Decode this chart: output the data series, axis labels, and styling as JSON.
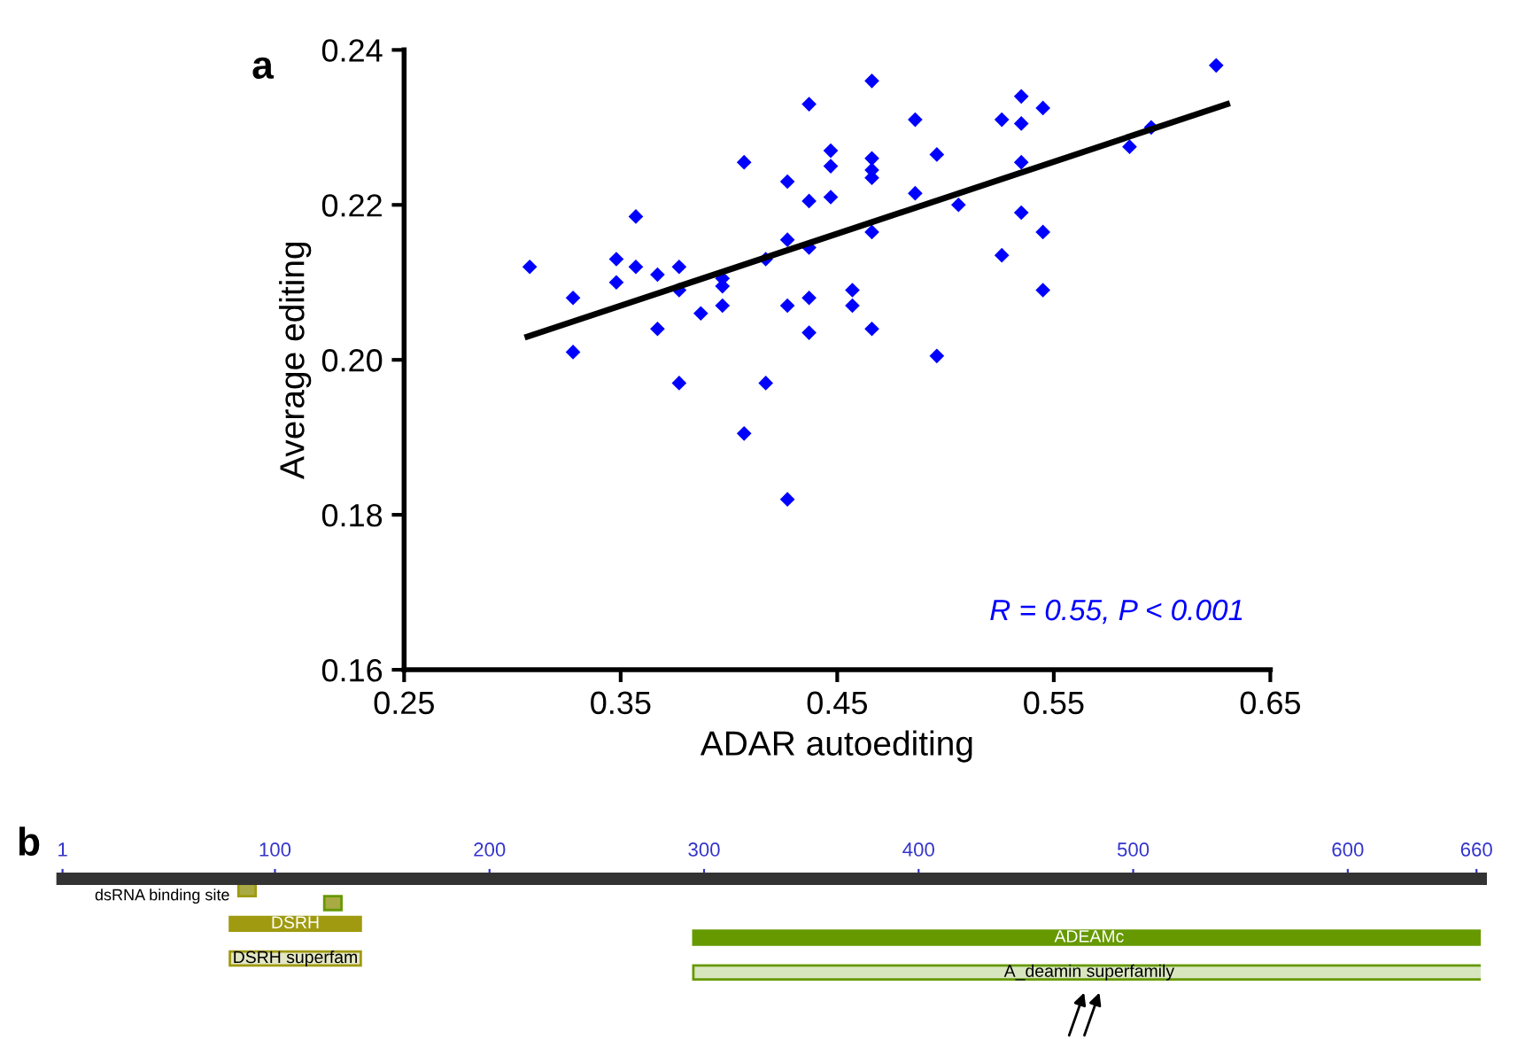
{
  "chart_data": [
    {
      "type": "scatter",
      "title": "a",
      "xlabel": "ADAR autoediting",
      "ylabel": "Average editing",
      "xlim": [
        0.25,
        0.65
      ],
      "xticks": [
        {
          "value": 0.25,
          "label": "0.25"
        },
        {
          "value": 0.35,
          "label": "0.35"
        },
        {
          "value": 0.45,
          "label": "0.45"
        },
        {
          "value": 0.55,
          "label": "0.55"
        },
        {
          "value": 0.65,
          "label": "0.65"
        }
      ],
      "ylim": [
        0.16,
        0.24
      ],
      "yticks": [
        {
          "value": 0.16,
          "label": "0.16"
        },
        {
          "value": 0.18,
          "label": "0.18"
        },
        {
          "value": 0.2,
          "label": "0.20"
        },
        {
          "value": 0.22,
          "label": "0.22"
        },
        {
          "value": 0.24,
          "label": "0.24"
        }
      ],
      "grid": false,
      "legend": false,
      "series": [
        {
          "type": "scatter",
          "color": "#0000ff",
          "marker": "diamond",
          "x": [
            0.308,
            0.328,
            0.328,
            0.348,
            0.348,
            0.357,
            0.357,
            0.367,
            0.367,
            0.377,
            0.377,
            0.377,
            0.387,
            0.397,
            0.397,
            0.397,
            0.407,
            0.407,
            0.417,
            0.417,
            0.427,
            0.427,
            0.427,
            0.427,
            0.437,
            0.437,
            0.437,
            0.437,
            0.437,
            0.447,
            0.447,
            0.447,
            0.457,
            0.457,
            0.466,
            0.466,
            0.466,
            0.466,
            0.466,
            0.466,
            0.486,
            0.486,
            0.496,
            0.496,
            0.506,
            0.526,
            0.526,
            0.535,
            0.535,
            0.535,
            0.535,
            0.545,
            0.545,
            0.545,
            0.585,
            0.595,
            0.625
          ],
          "values": [
            0.212,
            0.208,
            0.201,
            0.213,
            0.21,
            0.2185,
            0.212,
            0.211,
            0.204,
            0.212,
            0.209,
            0.197,
            0.206,
            0.2105,
            0.2095,
            0.207,
            0.2255,
            0.1905,
            0.197,
            0.213,
            0.223,
            0.2155,
            0.207,
            0.182,
            0.233,
            0.2205,
            0.2145,
            0.208,
            0.2035,
            0.227,
            0.225,
            0.221,
            0.209,
            0.207,
            0.236,
            0.226,
            0.2245,
            0.2235,
            0.2165,
            0.204,
            0.231,
            0.2215,
            0.2265,
            0.2005,
            0.22,
            0.231,
            0.2135,
            0.234,
            0.2305,
            0.2255,
            0.219,
            0.2325,
            0.2165,
            0.209,
            0.2275,
            0.23,
            0.238
          ]
        },
        {
          "type": "line",
          "color": "#000000",
          "x": [
            0.307,
            0.63
          ],
          "values": [
            0.203,
            0.233
          ]
        }
      ],
      "annotations": [
        "R = 0.55, P < 0.001"
      ]
    },
    {
      "type": "bar",
      "title": "b",
      "orientation": "horizontal",
      "categories": [
        null,
        null,
        null
      ],
      "annotations": [
        "dsRNA binding site"
      ],
      "xlim": [
        1,
        662
      ],
      "xticks": [
        1,
        100,
        200,
        300,
        400,
        500,
        600,
        660
      ],
      "tick_labels": "x",
      "series": [
        {
          "base": [
            83,
            79,
            79
          ],
          "values": [
            8,
            61,
            61
          ],
          "colors": [
            "#aaaa44",
            "#a09a10",
            "#e3e6c4"
          ],
          "value_labels": [
            null,
            "DSRH",
            "DSRH superfam"
          ]
        },
        {
          "base": [
            123,
            295,
            295
          ],
          "values": [
            8,
            369,
            369
          ],
          "colors": [
            "#aaaa44",
            "#669900",
            "#d8e6c0"
          ],
          "value_labels": [
            null,
            "ADEAMc",
            "A_deamin superfamily"
          ]
        }
      ]
    }
  ]
}
